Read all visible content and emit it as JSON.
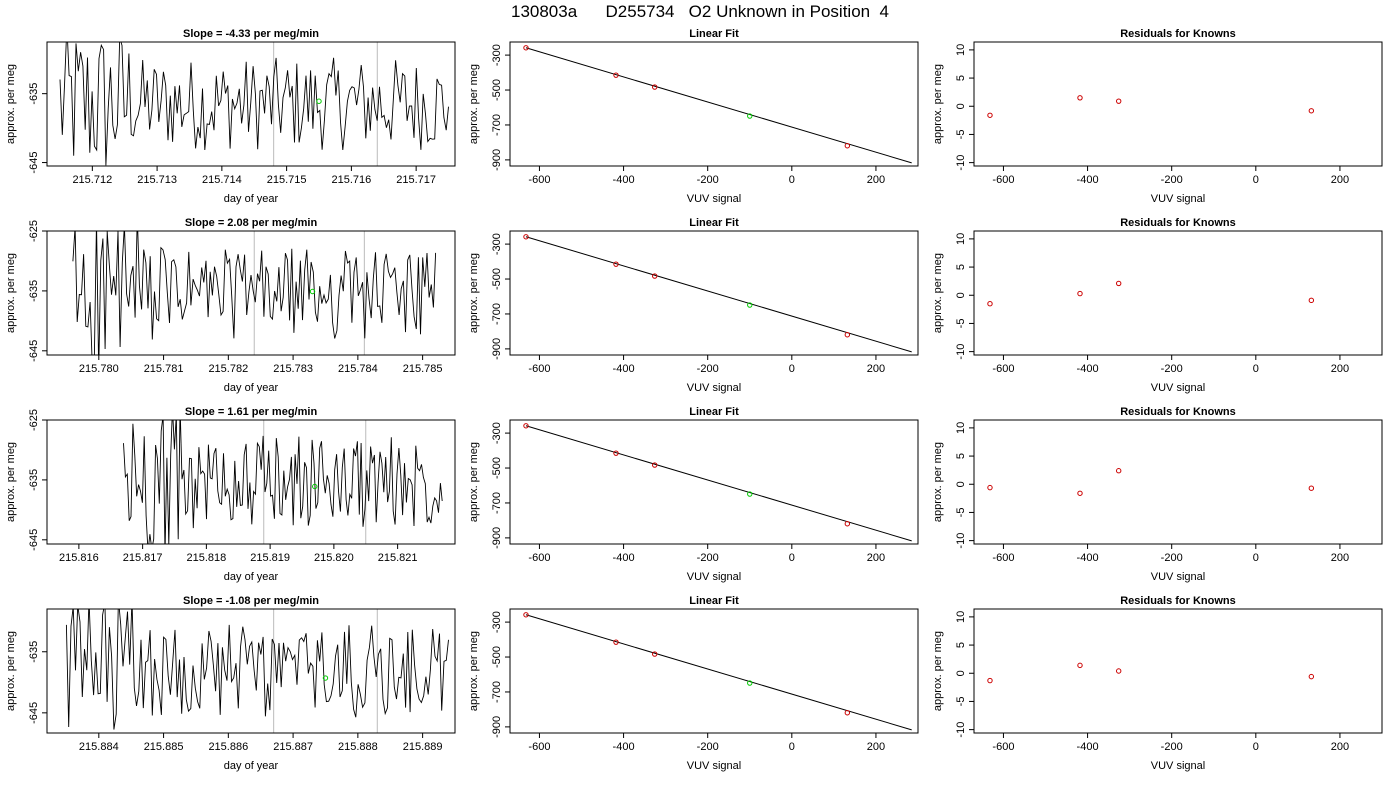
{
  "page_title": "130803a      D255734   O2 Unknown in Position  4",
  "chart_data": [
    {
      "row": 1,
      "timeseries": {
        "type": "line",
        "title": "Slope =  -4.33  per meg/min",
        "xlabel": "day of year",
        "ylabel": "approx. per meg",
        "xlim": [
          215.7113,
          215.7176
        ],
        "ylim": [
          -645.5,
          -627.5
        ],
        "xticks": [
          "215.712",
          "215.713",
          "215.714",
          "215.715",
          "215.716",
          "215.717"
        ],
        "yticks": [
          "-635",
          "-645"
        ],
        "series_start": 215.7115,
        "series_end": 215.7175,
        "vlines": [
          215.7148,
          215.7164
        ],
        "marker": {
          "x": 215.7155,
          "y": -636.1
        }
      },
      "fit": {
        "type": "scatter",
        "title": "Linear Fit",
        "xlabel": "VUV signal",
        "ylabel": "approx. per meg",
        "xlim": [
          -670,
          300
        ],
        "ylim": [
          -935,
          -225
        ],
        "xticks": [
          "-600",
          "-400",
          "-200",
          "0",
          "200"
        ],
        "yticks": [
          "-300",
          "-500",
          "-700",
          "-900"
        ],
        "line": {
          "x": [
            -632,
            285
          ],
          "y": [
            -258,
            -917
          ]
        },
        "knowns": [
          {
            "x": -632,
            "y": -258
          },
          {
            "x": -418,
            "y": -415
          },
          {
            "x": -326,
            "y": -483
          },
          {
            "x": 132,
            "y": -819
          }
        ],
        "unknown": [
          {
            "x": -100,
            "y": -649
          }
        ]
      },
      "residuals": {
        "type": "scatter",
        "title": "Residuals for Knowns",
        "xlabel": "VUV signal",
        "ylabel": "approx. per meg",
        "xlim": [
          -670,
          300
        ],
        "ylim": [
          -10.6,
          11.4
        ],
        "xticks": [
          "-600",
          "-400",
          "-200",
          "0",
          "200"
        ],
        "yticks": [
          "10",
          "5",
          "0",
          "-5",
          "-10"
        ],
        "points": [
          {
            "x": -632,
            "y": -1.6
          },
          {
            "x": -418,
            "y": 1.5
          },
          {
            "x": -326,
            "y": 0.9
          },
          {
            "x": 132,
            "y": -0.8
          }
        ]
      }
    },
    {
      "row": 2,
      "timeseries": {
        "type": "line",
        "title": "Slope =  2.08  per meg/min",
        "xlabel": "day of year",
        "ylabel": "approx. per meg",
        "xlim": [
          215.7792,
          215.7855
        ],
        "ylim": [
          -645.7,
          -625
        ],
        "xticks": [
          "215.780",
          "215.781",
          "215.782",
          "215.783",
          "215.784",
          "215.785"
        ],
        "yticks": [
          "-625",
          "-635",
          "-645"
        ],
        "series_start": 215.7796,
        "series_end": 215.7852,
        "vlines": [
          215.7824,
          215.7841
        ],
        "marker": {
          "x": 215.7833,
          "y": -635.1
        }
      },
      "fit": {
        "type": "scatter",
        "title": "Linear Fit",
        "xlabel": "VUV signal",
        "ylabel": "approx. per meg",
        "xlim": [
          -670,
          300
        ],
        "ylim": [
          -935,
          -225
        ],
        "xticks": [
          "-600",
          "-400",
          "-200",
          "0",
          "200"
        ],
        "yticks": [
          "-300",
          "-500",
          "-700",
          "-900"
        ],
        "line": {
          "x": [
            -632,
            285
          ],
          "y": [
            -258,
            -917
          ]
        },
        "knowns": [
          {
            "x": -632,
            "y": -258
          },
          {
            "x": -418,
            "y": -415
          },
          {
            "x": -326,
            "y": -483
          },
          {
            "x": 132,
            "y": -819
          }
        ],
        "unknown": [
          {
            "x": -100,
            "y": -649
          }
        ]
      },
      "residuals": {
        "type": "scatter",
        "title": "Residuals for Knowns",
        "xlabel": "VUV signal",
        "ylabel": "approx. per meg",
        "xlim": [
          -670,
          300
        ],
        "ylim": [
          -10.6,
          11.4
        ],
        "xticks": [
          "-600",
          "-400",
          "-200",
          "0",
          "200"
        ],
        "yticks": [
          "10",
          "5",
          "0",
          "-5",
          "-10"
        ],
        "points": [
          {
            "x": -632,
            "y": -1.5
          },
          {
            "x": -418,
            "y": 0.3
          },
          {
            "x": -326,
            "y": 2.1
          },
          {
            "x": 132,
            "y": -0.9
          }
        ]
      }
    },
    {
      "row": 3,
      "timeseries": {
        "type": "line",
        "title": "Slope =  1.61  per meg/min",
        "xlabel": "day of year",
        "ylabel": "approx. per meg",
        "xlim": [
          215.8155,
          215.8219
        ],
        "ylim": [
          -645.7,
          -625
        ],
        "xticks": [
          "215.816",
          "215.817",
          "215.818",
          "215.819",
          "215.820",
          "215.821"
        ],
        "yticks": [
          "-625",
          "-635",
          "-645"
        ],
        "series_start": 215.8167,
        "series_end": 215.8217,
        "vlines": [
          215.8189,
          215.8205
        ],
        "marker": {
          "x": 215.8197,
          "y": -636.1
        }
      },
      "fit": {
        "type": "scatter",
        "title": "Linear Fit",
        "xlabel": "VUV signal",
        "ylabel": "approx. per meg",
        "xlim": [
          -670,
          300
        ],
        "ylim": [
          -935,
          -225
        ],
        "xticks": [
          "-600",
          "-400",
          "-200",
          "0",
          "200"
        ],
        "yticks": [
          "-300",
          "-500",
          "-700",
          "-900"
        ],
        "line": {
          "x": [
            -632,
            285
          ],
          "y": [
            -258,
            -917
          ]
        },
        "knowns": [
          {
            "x": -632,
            "y": -258
          },
          {
            "x": -418,
            "y": -415
          },
          {
            "x": -326,
            "y": -483
          },
          {
            "x": 132,
            "y": -819
          }
        ],
        "unknown": [
          {
            "x": -100,
            "y": -649
          }
        ]
      },
      "residuals": {
        "type": "scatter",
        "title": "Residuals for Knowns",
        "xlabel": "VUV signal",
        "ylabel": "approx. per meg",
        "xlim": [
          -670,
          300
        ],
        "ylim": [
          -10.6,
          11.4
        ],
        "xticks": [
          "-600",
          "-400",
          "-200",
          "0",
          "200"
        ],
        "yticks": [
          "10",
          "5",
          "0",
          "-5",
          "-10"
        ],
        "points": [
          {
            "x": -632,
            "y": -0.6
          },
          {
            "x": -418,
            "y": -1.6
          },
          {
            "x": -326,
            "y": 2.4
          },
          {
            "x": 132,
            "y": -0.7
          }
        ]
      }
    },
    {
      "row": 4,
      "timeseries": {
        "type": "line",
        "title": "Slope =  -1.08  per meg/min",
        "xlabel": "day of year",
        "ylabel": "approx. per meg",
        "xlim": [
          215.8832,
          215.8895
        ],
        "ylim": [
          -648.3,
          -628
        ],
        "xticks": [
          "215.884",
          "215.885",
          "215.886",
          "215.887",
          "215.888",
          "215.889"
        ],
        "yticks": [
          "-635",
          "-645"
        ],
        "series_start": 215.8835,
        "series_end": 215.8894,
        "vlines": [
          215.8867,
          215.8883
        ],
        "marker": {
          "x": 215.8875,
          "y": -639.3
        }
      },
      "fit": {
        "type": "scatter",
        "title": "Linear Fit",
        "xlabel": "VUV signal",
        "ylabel": "approx. per meg",
        "xlim": [
          -670,
          300
        ],
        "ylim": [
          -935,
          -225
        ],
        "xticks": [
          "-600",
          "-400",
          "-200",
          "0",
          "200"
        ],
        "yticks": [
          "-300",
          "-500",
          "-700",
          "-900"
        ],
        "line": {
          "x": [
            -632,
            285
          ],
          "y": [
            -258,
            -917
          ]
        },
        "knowns": [
          {
            "x": -632,
            "y": -258
          },
          {
            "x": -418,
            "y": -415
          },
          {
            "x": -326,
            "y": -483
          },
          {
            "x": 132,
            "y": -819
          }
        ],
        "unknown": [
          {
            "x": -100,
            "y": -649
          }
        ]
      },
      "residuals": {
        "type": "scatter",
        "title": "Residuals for Knowns",
        "xlabel": "VUV signal",
        "ylabel": "approx. per meg",
        "xlim": [
          -670,
          300
        ],
        "ylim": [
          -10.6,
          11.4
        ],
        "xticks": [
          "-600",
          "-400",
          "-200",
          "0",
          "200"
        ],
        "yticks": [
          "10",
          "5",
          "0",
          "-5",
          "-10"
        ],
        "points": [
          {
            "x": -632,
            "y": -1.3
          },
          {
            "x": -418,
            "y": 1.4
          },
          {
            "x": -326,
            "y": 0.4
          },
          {
            "x": 132,
            "y": -0.6
          }
        ]
      }
    }
  ],
  "colors": {
    "series": "#000000",
    "known": "#cc0000",
    "unknown": "#00cc00",
    "vline": "#bbbbbb",
    "frame": "#000000"
  }
}
